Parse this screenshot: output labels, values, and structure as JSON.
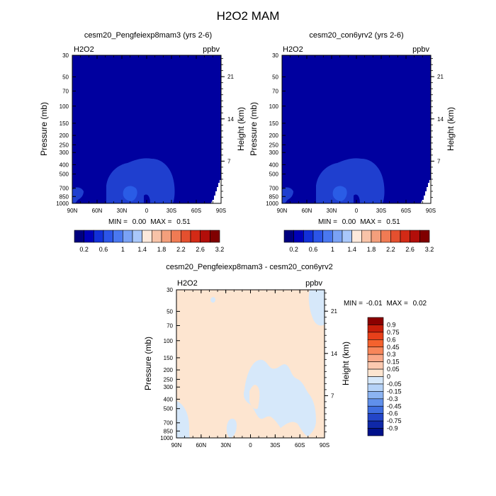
{
  "figure": {
    "title": "H2O2 MAM",
    "variable": "H2O2",
    "units": "ppbv"
  },
  "colors": {
    "background_dark_blue": "#00009f",
    "contour_mid_blue": "#1f3fcf",
    "contour_bright_blue": "#2a5ce6",
    "diff_neutral": "#fde5d0",
    "diff_light_blue": "#d6e8fa"
  },
  "chart_data": [
    {
      "type": "heatmap",
      "title": "cesm20_Pengfeiexp8mam3 (yrs 2-6)",
      "left_label": "H2O2",
      "right_label": "ppbv",
      "ylabel": "Pressure (mb)",
      "ylabel_right": "Height (km)",
      "x_ticks": [
        "90N",
        "60N",
        "30N",
        "0",
        "30S",
        "60S",
        "90S"
      ],
      "y_ticks": [
        "30",
        "50",
        "70",
        "100",
        "150",
        "200",
        "250",
        "300",
        "400",
        "500",
        "700",
        "850",
        "1000"
      ],
      "y_right_ticks": [
        "21",
        "14",
        "7"
      ],
      "xlim": [
        90,
        -90
      ],
      "ylim_log_pressure": [
        1000,
        30
      ],
      "stats": {
        "min_label": "MIN = ",
        "min": "0.00",
        "max_label": "MAX = ",
        "max": "0.51"
      },
      "colorbar_labels": [
        "0.2",
        "0.6",
        "1",
        "1.4",
        "1.8",
        "2.2",
        "2.6",
        "3.2"
      ],
      "colorbar_colors": [
        "#00007f",
        "#0000b8",
        "#1230d8",
        "#2c55e8",
        "#4a78f0",
        "#7aa2f5",
        "#a9c7fa",
        "#fde9dc",
        "#f8c3a8",
        "#f49f7c",
        "#f07b54",
        "#e4502f",
        "#d32a16",
        "#b20e0a",
        "#800000"
      ]
    },
    {
      "type": "heatmap",
      "title": "cesm20_con6yrv2 (yrs 2-6)",
      "left_label": "H2O2",
      "right_label": "ppbv",
      "ylabel": "Pressure (mb)",
      "ylabel_right": "Height (km)",
      "x_ticks": [
        "90N",
        "60N",
        "30N",
        "0",
        "30S",
        "60S",
        "90S"
      ],
      "y_ticks": [
        "30",
        "50",
        "70",
        "100",
        "150",
        "200",
        "250",
        "300",
        "400",
        "500",
        "700",
        "850",
        "1000"
      ],
      "y_right_ticks": [
        "21",
        "14",
        "7"
      ],
      "xlim": [
        90,
        -90
      ],
      "ylim_log_pressure": [
        1000,
        30
      ],
      "stats": {
        "min_label": "MIN = ",
        "min": "0.00",
        "max_label": "MAX = ",
        "max": "0.51"
      },
      "colorbar_labels": [
        "0.2",
        "0.6",
        "1",
        "1.4",
        "1.8",
        "2.2",
        "2.6",
        "3.2"
      ],
      "colorbar_colors": [
        "#00007f",
        "#0000b8",
        "#1230d8",
        "#2c55e8",
        "#4a78f0",
        "#7aa2f5",
        "#a9c7fa",
        "#fde9dc",
        "#f8c3a8",
        "#f49f7c",
        "#f07b54",
        "#e4502f",
        "#d32a16",
        "#b20e0a",
        "#800000"
      ]
    },
    {
      "type": "heatmap",
      "title": "cesm20_Pengfeiexp8mam3 - cesm20_con6yrv2",
      "left_label": "H2O2",
      "right_label": "ppbv",
      "ylabel": "Pressure (mb)",
      "ylabel_right": "Height (km)",
      "x_ticks": [
        "90N",
        "60N",
        "30N",
        "0",
        "30S",
        "60S",
        "90S"
      ],
      "y_ticks": [
        "30",
        "50",
        "70",
        "100",
        "150",
        "200",
        "250",
        "300",
        "400",
        "500",
        "700",
        "850",
        "1000"
      ],
      "y_right_ticks": [
        "21",
        "14",
        "7"
      ],
      "xlim": [
        90,
        -90
      ],
      "ylim_log_pressure": [
        1000,
        30
      ],
      "stats": {
        "min_label": "MIN = ",
        "min": "-0.01",
        "max_label": "MAX = ",
        "max": "0.02"
      },
      "colorbar_labels": [
        "0.9",
        "0.75",
        "0.6",
        "0.45",
        "0.3",
        "0.15",
        "0.05",
        "0",
        "-0.05",
        "-0.15",
        "-0.3",
        "-0.45",
        "-0.6",
        "-0.75",
        "-0.9"
      ],
      "colorbar_colors": [
        "#8b0000",
        "#c81e0a",
        "#e8401a",
        "#f4622e",
        "#f7865a",
        "#f9a888",
        "#fbc9b0",
        "#fde5d0",
        "#d6e8fa",
        "#b5d2f7",
        "#8cb4f2",
        "#6090eb",
        "#3f6ee0",
        "#2346c8",
        "#0f28a8",
        "#00108a"
      ]
    }
  ]
}
